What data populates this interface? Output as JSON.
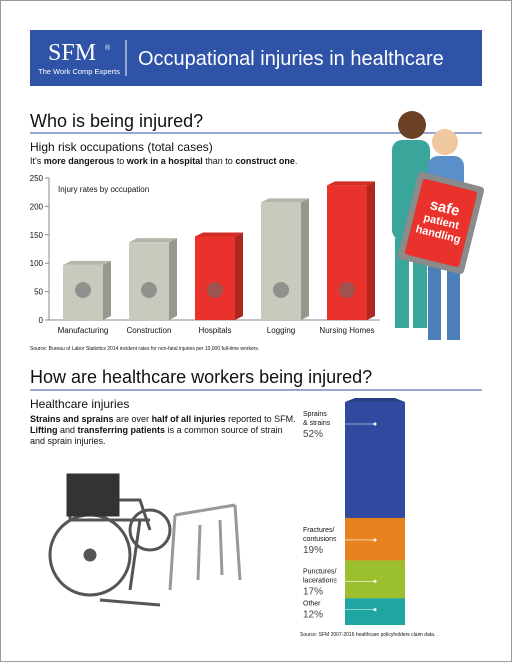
{
  "header": {
    "logo": "SFM",
    "registered": "®",
    "tagline": "The Work Comp Experts",
    "title": "Occupational injuries in healthcare"
  },
  "section1": {
    "heading": "Who is being injured?",
    "subheading": "High risk occupations (total cases)",
    "intro": [
      {
        "text": "It's ",
        "bold": false
      },
      {
        "text": "more dangerous",
        "bold": true
      },
      {
        "text": " to ",
        "bold": false
      },
      {
        "text": "work in a hospital",
        "bold": true
      },
      {
        "text": " than to ",
        "bold": false
      },
      {
        "text": "construct one",
        "bold": true
      },
      {
        "text": ".",
        "bold": false
      }
    ],
    "sign": [
      "safe",
      "patient",
      "handling"
    ]
  },
  "section2": {
    "heading": "How are healthcare workers being injured?",
    "subheading": "Healthcare injuries",
    "paragraph": [
      [
        {
          "text": "Strains and sprains",
          "bold": true
        },
        {
          "text": " are over ",
          "bold": false
        },
        {
          "text": "half of all injuries",
          "bold": true
        },
        {
          "text": " reported to SFM.",
          "bold": false
        }
      ],
      [
        {
          "text": "Lifting",
          "bold": true
        },
        {
          "text": " and ",
          "bold": false
        },
        {
          "text": "transferring patients",
          "bold": true
        },
        {
          "text": " is a common source of strain",
          "bold": false
        }
      ],
      [
        {
          "text": "and sprain injuries.",
          "bold": false
        }
      ]
    ]
  },
  "chart_data": [
    {
      "type": "bar",
      "title": "Injury rates by occupation",
      "categories": [
        "Manufacturing",
        "Construction",
        "Hospitals",
        "Logging",
        "Nursing Homes"
      ],
      "values": [
        97,
        137,
        147,
        207,
        237
      ],
      "colors": [
        "#c9c9bd",
        "#c9c9bd",
        "#e8322b",
        "#c9c9bd",
        "#e8322b"
      ],
      "ylim": [
        0,
        250
      ],
      "yticks": [
        0,
        50,
        100,
        150,
        200,
        250
      ],
      "grid": false,
      "source": "Source: Bureau of Labor Statistics 2014 incident rates for non-fatal injuries per 10,000 full-time workers."
    },
    {
      "type": "stacked_column",
      "categories": [
        "Sprains & strains",
        "Fractures/ contusions",
        "Punctures/ lacerations",
        "Other"
      ],
      "values": [
        52,
        19,
        17,
        12
      ],
      "value_labels": [
        "52%",
        "19%",
        "17%",
        "12%"
      ],
      "colors": [
        "#2f4a9e",
        "#e8821e",
        "#9cbf2d",
        "#1fa5a2"
      ],
      "ylim": [
        0,
        100
      ],
      "source": "Source: SFM 2007-2016 healthcare policyholders claim data."
    }
  ]
}
